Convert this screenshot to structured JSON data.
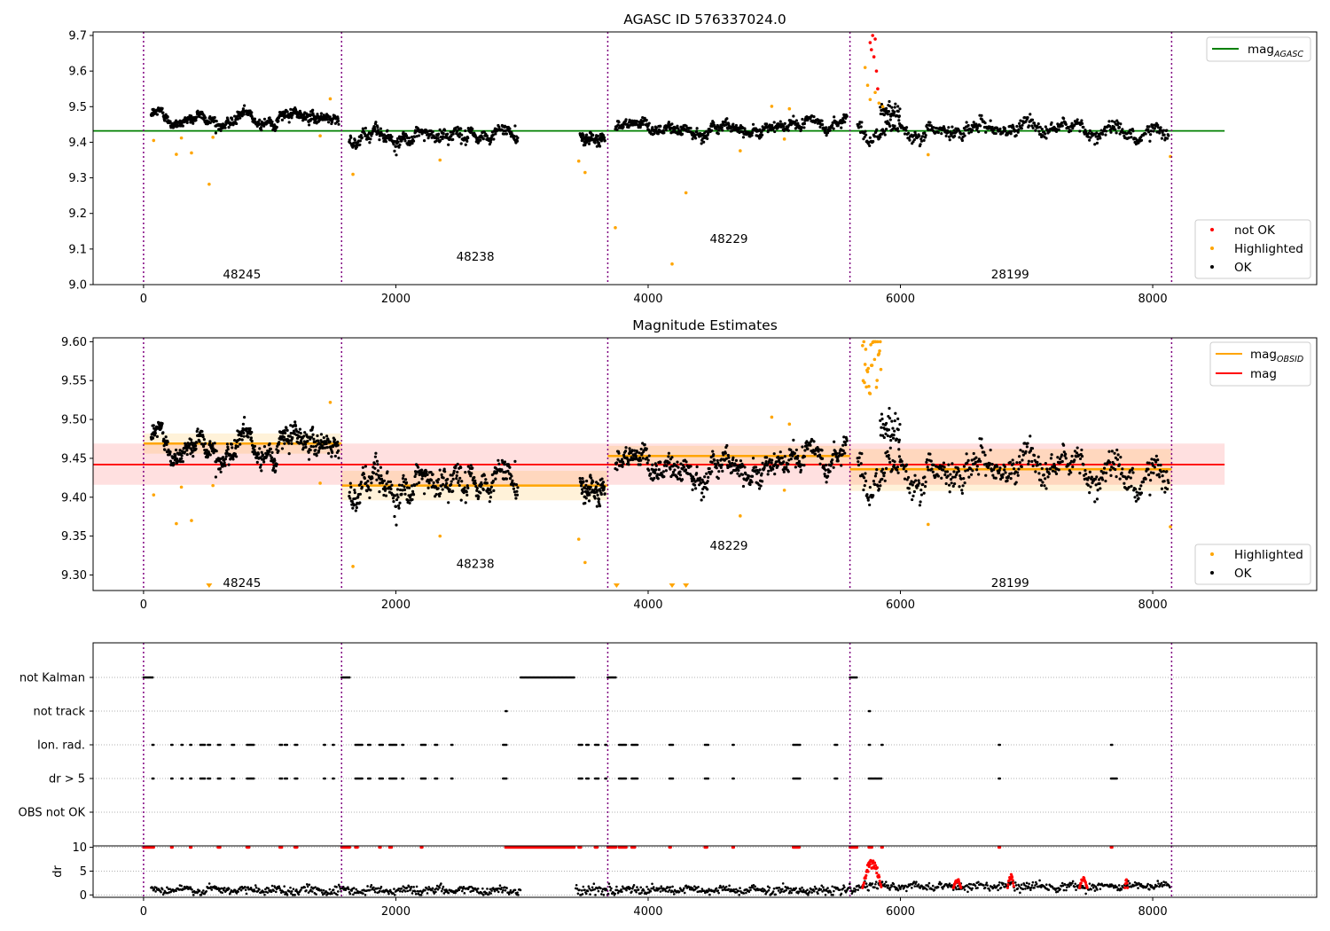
{
  "figure": {
    "title": "AGASC ID 576337024.0",
    "subtitle": "Magnitude Estimates"
  },
  "chart_data": [
    {
      "type": "scatter",
      "title": "AGASC ID 576337024.0",
      "xlabel": "",
      "ylabel": "",
      "xlim": [
        -400,
        9300
      ],
      "ylim": [
        9.0,
        9.71
      ],
      "xticks": [
        0,
        2000,
        4000,
        6000,
        8000
      ],
      "yticks": [
        9.0,
        9.1,
        9.2,
        9.3,
        9.4,
        9.5,
        9.6,
        9.7
      ],
      "lines": [
        {
          "name": "mag_AGASC",
          "label_main": "mag",
          "label_sub": "AGASC",
          "color": "#008000",
          "x": [
            -400,
            8570
          ],
          "y": [
            9.432,
            9.432
          ]
        }
      ],
      "legend_lines": {
        "position": "upper right"
      },
      "legend_points": {
        "position": "lower right",
        "entries": [
          {
            "label": "not OK",
            "color": "#ff0000"
          },
          {
            "label": "Highlighted",
            "color": "#ffa500"
          },
          {
            "label": "OK",
            "color": "#000000"
          }
        ]
      },
      "observation_boundaries": [
        0,
        1570,
        3680,
        5600,
        8150
      ],
      "observations": [
        {
          "obsid": "48245",
          "label_x": 780,
          "label_y": 9.03,
          "x_range": [
            0,
            1570
          ],
          "mean": 9.47,
          "noise": 0.012
        },
        {
          "obsid": "48238",
          "label_x": 2630,
          "label_y": 9.08,
          "x_range": [
            1570,
            3680
          ],
          "mean": 9.415,
          "noise": 0.016
        },
        {
          "obsid": "48229",
          "label_x": 4640,
          "label_y": 9.13,
          "x_range": [
            3680,
            5600
          ],
          "mean": 9.452,
          "noise": 0.013
        },
        {
          "obsid": "28199",
          "label_x": 6870,
          "label_y": 9.03,
          "x_range": [
            5600,
            8150
          ],
          "mean": 9.435,
          "noise": 0.017
        }
      ],
      "highlighted_points": {
        "x": [
          80,
          260,
          300,
          380,
          520,
          550,
          1400,
          1480,
          1660,
          2350,
          3450,
          3500,
          3740,
          4190,
          4300,
          4730,
          4980,
          5080,
          5120,
          5720,
          5740,
          5760,
          5800,
          5830,
          5860,
          6220,
          8140
        ],
        "y": [
          9.405,
          9.366,
          9.412,
          9.37,
          9.282,
          9.414,
          9.418,
          9.522,
          9.31,
          9.35,
          9.347,
          9.315,
          9.16,
          9.058,
          9.258,
          9.376,
          9.501,
          9.409,
          9.494,
          9.61,
          9.56,
          9.52,
          9.54,
          9.51,
          9.5,
          9.365,
          9.36
        ]
      },
      "not_ok_points": {
        "x": [
          5760,
          5770,
          5780,
          5790,
          5800,
          5810,
          5820
        ],
        "y": [
          9.68,
          9.66,
          9.7,
          9.64,
          9.69,
          9.6,
          9.55
        ]
      }
    },
    {
      "type": "scatter",
      "title": "Magnitude Estimates",
      "xlabel": "",
      "ylabel": "",
      "xlim": [
        -400,
        9300
      ],
      "ylim": [
        9.28,
        9.605
      ],
      "xticks": [
        0,
        2000,
        4000,
        6000,
        8000
      ],
      "yticks": [
        9.3,
        9.35,
        9.4,
        9.45,
        9.5,
        9.55,
        9.6
      ],
      "mag": {
        "value": 9.442,
        "band": [
          9.416,
          9.469
        ],
        "color": "#ff0000",
        "x_range": [
          -400,
          8570
        ]
      },
      "obsid_means": [
        {
          "x_range": [
            0,
            1570
          ],
          "mean": 9.469,
          "band": [
            9.456,
            9.482
          ]
        },
        {
          "x_range": [
            1570,
            3680
          ],
          "mean": 9.415,
          "band": [
            9.396,
            9.434
          ]
        },
        {
          "x_range": [
            3680,
            5600
          ],
          "mean": 9.453,
          "band": [
            9.44,
            9.466
          ]
        },
        {
          "x_range": [
            5600,
            8150
          ],
          "mean": 9.436,
          "band": [
            9.408,
            9.462
          ]
        }
      ],
      "legend_lines": {
        "position": "upper right",
        "entries": [
          {
            "label_main": "mag",
            "label_sub": "OBSID",
            "color": "#ffa500"
          },
          {
            "label_main": "mag",
            "label_sub": "",
            "color": "#ff0000"
          }
        ]
      },
      "legend_points": {
        "position": "lower right",
        "entries": [
          {
            "label": "Highlighted",
            "color": "#ffa500"
          },
          {
            "label": "OK",
            "color": "#000000"
          }
        ]
      },
      "observation_boundaries": [
        0,
        1570,
        3680,
        5600,
        8150
      ],
      "obs_labels": [
        {
          "obsid": "48245",
          "x": 780,
          "y": 9.29
        },
        {
          "obsid": "48238",
          "x": 2630,
          "y": 9.315
        },
        {
          "obsid": "48229",
          "x": 4640,
          "y": 9.338
        },
        {
          "obsid": "28199",
          "x": 6870,
          "y": 9.29
        }
      ],
      "highlighted_points": {
        "x": [
          80,
          260,
          300,
          380,
          550,
          1400,
          1480,
          1660,
          2350,
          3450,
          3500,
          4730,
          4980,
          5080,
          5120,
          6220,
          8140
        ],
        "y": [
          9.403,
          9.366,
          9.413,
          9.37,
          9.415,
          9.418,
          9.522,
          9.311,
          9.35,
          9.346,
          9.316,
          9.376,
          9.503,
          9.409,
          9.494,
          9.365,
          9.362
        ]
      },
      "below_range_markers": {
        "x": [
          520,
          3750,
          4190,
          4300
        ]
      }
    },
    {
      "type": "scatter",
      "title": "",
      "xlabel": "",
      "ylabel": "",
      "xlim": [
        -400,
        9300
      ],
      "categories": [
        "not Kalman",
        "not track",
        "Ion. rad.",
        "dr > 5",
        "OBS not OK"
      ],
      "flags": {
        "not Kalman": [
          [
            0,
            80
          ],
          [
            1570,
            1640
          ],
          [
            2990,
            3420
          ],
          [
            3680,
            3750
          ],
          [
            5600,
            5660
          ]
        ],
        "not track": [
          [
            2870,
            2880
          ],
          [
            5750,
            5760
          ]
        ],
        "Ion. rad.": [
          [
            70,
            80
          ],
          [
            220,
            230
          ],
          [
            300,
            310
          ],
          [
            370,
            380
          ],
          [
            450,
            490
          ],
          [
            510,
            530
          ],
          [
            590,
            610
          ],
          [
            700,
            720
          ],
          [
            820,
            880
          ],
          [
            1080,
            1100
          ],
          [
            1120,
            1140
          ],
          [
            1200,
            1220
          ],
          [
            1430,
            1440
          ],
          [
            1500,
            1510
          ],
          [
            1680,
            1740
          ],
          [
            1780,
            1800
          ],
          [
            1870,
            1900
          ],
          [
            1950,
            2010
          ],
          [
            2050,
            2060
          ],
          [
            2200,
            2240
          ],
          [
            2310,
            2330
          ],
          [
            2440,
            2450
          ],
          [
            2850,
            2880
          ],
          [
            3450,
            3480
          ],
          [
            3510,
            3530
          ],
          [
            3580,
            3610
          ],
          [
            3660,
            3670
          ],
          [
            3770,
            3830
          ],
          [
            3870,
            3920
          ],
          [
            4170,
            4200
          ],
          [
            4450,
            4480
          ],
          [
            4670,
            4680
          ],
          [
            5150,
            5210
          ],
          [
            5480,
            5500
          ],
          [
            5750,
            5760
          ],
          [
            5850,
            5860
          ],
          [
            6780,
            6790
          ],
          [
            7670,
            7680
          ]
        ],
        "dr > 5": [
          [
            70,
            80
          ],
          [
            220,
            230
          ],
          [
            300,
            310
          ],
          [
            370,
            380
          ],
          [
            450,
            490
          ],
          [
            510,
            530
          ],
          [
            590,
            610
          ],
          [
            700,
            720
          ],
          [
            820,
            880
          ],
          [
            1080,
            1100
          ],
          [
            1120,
            1140
          ],
          [
            1200,
            1220
          ],
          [
            1430,
            1440
          ],
          [
            1500,
            1510
          ],
          [
            1680,
            1740
          ],
          [
            1780,
            1800
          ],
          [
            1870,
            1900
          ],
          [
            1950,
            2010
          ],
          [
            2050,
            2060
          ],
          [
            2200,
            2240
          ],
          [
            2310,
            2330
          ],
          [
            2440,
            2450
          ],
          [
            2850,
            2880
          ],
          [
            3450,
            3480
          ],
          [
            3510,
            3530
          ],
          [
            3580,
            3610
          ],
          [
            3660,
            3670
          ],
          [
            3770,
            3830
          ],
          [
            3870,
            3920
          ],
          [
            4170,
            4200
          ],
          [
            4450,
            4480
          ],
          [
            4670,
            4680
          ],
          [
            5150,
            5210
          ],
          [
            5480,
            5500
          ],
          [
            5750,
            5850
          ],
          [
            6780,
            6790
          ],
          [
            7670,
            7720
          ]
        ],
        "OBS not OK": []
      },
      "observation_boundaries": [
        0,
        1570,
        3680,
        5600,
        8150
      ]
    },
    {
      "type": "scatter",
      "title": "",
      "xlabel": "",
      "ylabel": "dr",
      "xlim": [
        -400,
        9300
      ],
      "ylim": [
        -0.5,
        10.3
      ],
      "yticks": [
        0,
        5,
        10
      ],
      "gaps": [
        [
          2990,
          3420
        ]
      ],
      "red_clipped_at_10": [
        [
          0,
          80
        ],
        [
          1570,
          1640
        ],
        [
          2870,
          3420
        ],
        [
          3680,
          3750
        ],
        [
          5600,
          5660
        ],
        [
          220,
          230
        ],
        [
          370,
          380
        ],
        [
          590,
          610
        ],
        [
          820,
          840
        ],
        [
          1080,
          1100
        ],
        [
          1200,
          1220
        ],
        [
          1680,
          1700
        ],
        [
          1870,
          1880
        ],
        [
          1950,
          1970
        ],
        [
          2200,
          2210
        ],
        [
          3450,
          3470
        ],
        [
          3580,
          3600
        ],
        [
          3770,
          3830
        ],
        [
          3870,
          3900
        ],
        [
          4170,
          4180
        ],
        [
          4450,
          4470
        ],
        [
          4670,
          4680
        ],
        [
          5150,
          5200
        ],
        [
          5750,
          5780
        ],
        [
          5850,
          5860
        ],
        [
          6780,
          6790
        ],
        [
          7670,
          7680
        ]
      ],
      "red_excursions": [
        {
          "x_range": [
            5700,
            5850
          ],
          "peak": 8
        },
        {
          "x_range": [
            6420,
            6480
          ],
          "peak": 3.5
        },
        {
          "x_range": [
            6850,
            6900
          ],
          "peak": 4.5
        },
        {
          "x_range": [
            7420,
            7480
          ],
          "peak": 4
        },
        {
          "x_range": [
            7780,
            7800
          ],
          "peak": 3.5
        }
      ],
      "observation_boundaries": [
        0,
        1570,
        3680,
        5600,
        8150
      ]
    }
  ]
}
